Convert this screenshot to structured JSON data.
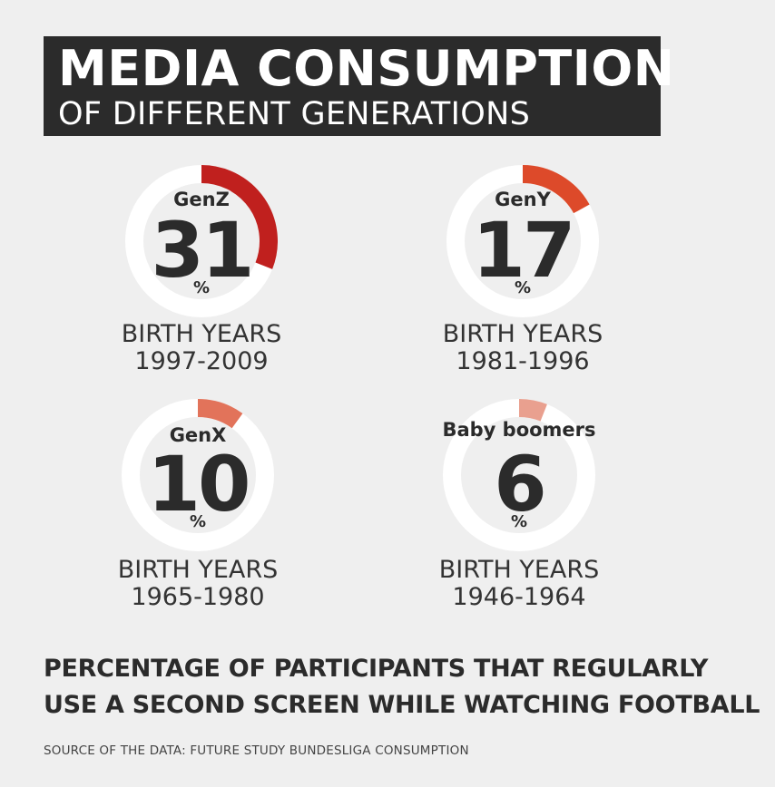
{
  "header": {
    "title": "MEDIA CONSUMPTION",
    "subtitle": "OF DIFFERENT GENERATIONS"
  },
  "chart_data": {
    "type": "pie",
    "unit": "%",
    "series": [
      {
        "name": "GenZ",
        "value": 31,
        "birth_years_label": "BIRTH YEARS",
        "birth_years": "1997-2009",
        "color": "#c0201e"
      },
      {
        "name": "GenY",
        "value": 17,
        "birth_years_label": "BIRTH YEARS",
        "birth_years": "1981-1996",
        "color": "#dd4a2a"
      },
      {
        "name": "GenX",
        "value": 10,
        "birth_years_label": "BIRTH YEARS",
        "birth_years": "1965-1980",
        "color": "#e2735a"
      },
      {
        "name": "Baby boomers",
        "value": 6,
        "birth_years_label": "BIRTH YEARS",
        "birth_years": "1946-1964",
        "color": "#e9a08f"
      }
    ]
  },
  "caption": {
    "line1": "PERCENTAGE OF PARTICIPANTS THAT REGULARLY",
    "line2": "USE A SECOND SCREEN WHILE WATCHING FOOTBALL"
  },
  "source": "SOURCE OF THE DATA: FUTURE STUDY BUNDESLIGA CONSUMPTION"
}
